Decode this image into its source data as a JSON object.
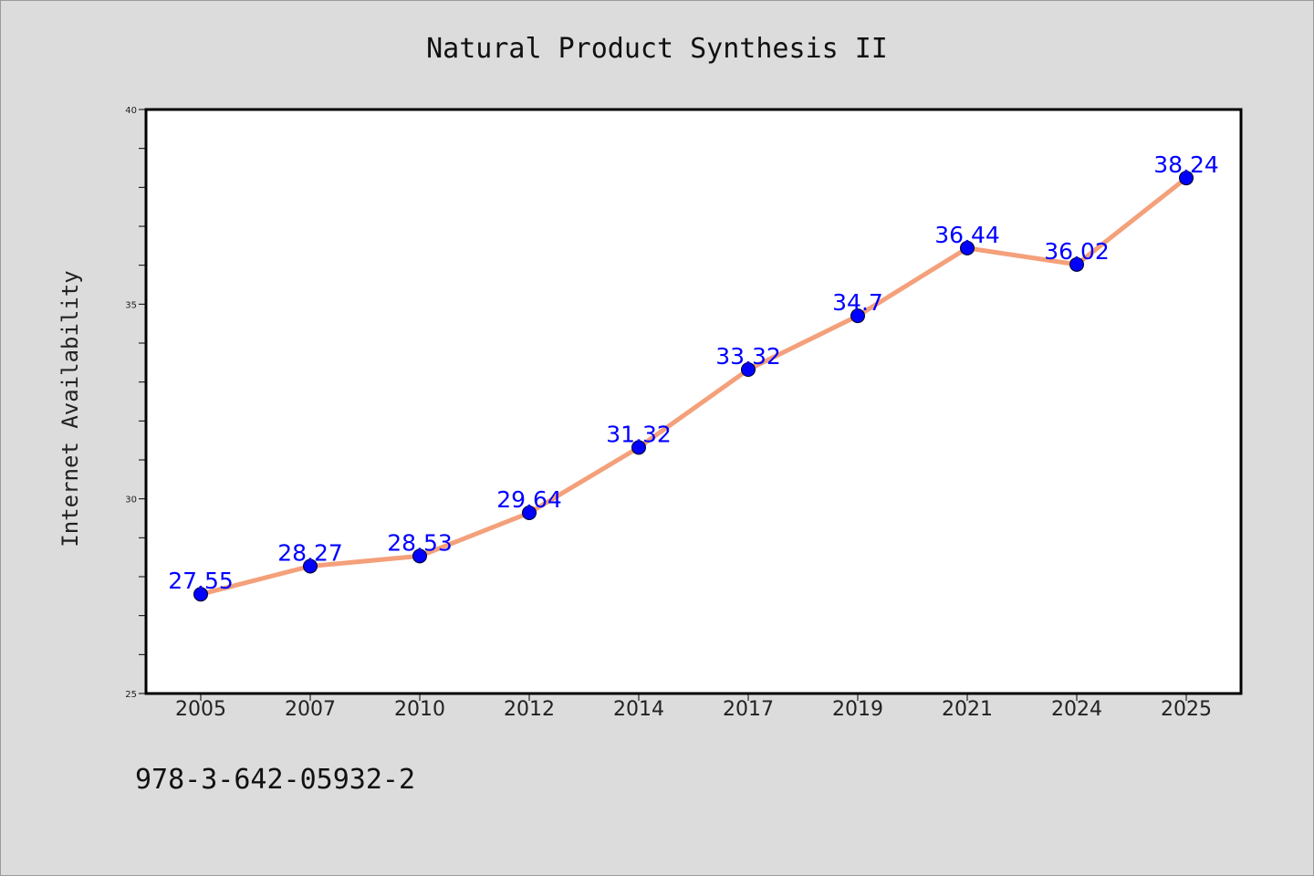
{
  "chart_data": {
    "type": "line",
    "title": "Natural Product Synthesis II",
    "xlabel": "",
    "ylabel": "Internet Availability",
    "categories": [
      "2005",
      "2007",
      "2010",
      "2012",
      "2014",
      "2017",
      "2019",
      "2021",
      "2024",
      "2025"
    ],
    "series": [
      {
        "values": [
          27.55,
          28.27,
          28.53,
          29.64,
          31.32,
          33.32,
          34.7,
          36.44,
          36.02,
          38.24
        ],
        "line_color": "#f4a07a",
        "marker_color": "#0000ff"
      }
    ],
    "data_labels": [
      "27.55",
      "28.27",
      "28.53",
      "29.64",
      "31.32",
      "33.32",
      "34.7",
      "36.44",
      "36.02",
      "38.24"
    ],
    "ylim": [
      25,
      40
    ],
    "yticks": [
      "25",
      "30",
      "35",
      "40"
    ],
    "grid": false,
    "label_color": "#0000ff"
  },
  "footer": {
    "isbn": "978-3-642-05932-2"
  }
}
